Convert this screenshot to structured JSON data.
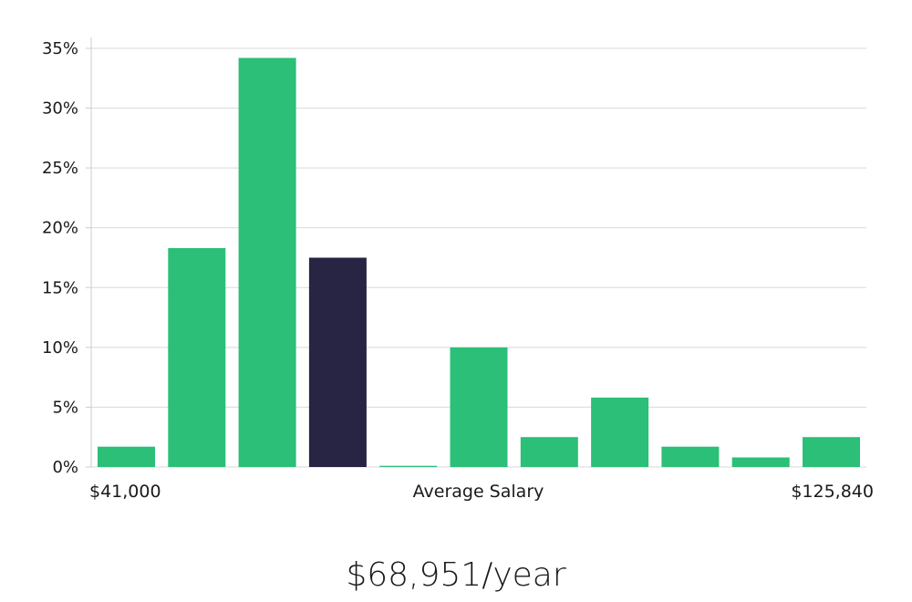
{
  "chart_data": {
    "type": "bar",
    "bins": 11,
    "values": [
      1.7,
      18.3,
      34.2,
      17.5,
      0.1,
      10.0,
      2.5,
      5.8,
      1.7,
      0.8,
      2.5
    ],
    "highlight_index": 3,
    "ylim": [
      0,
      35
    ],
    "yticks": [
      0,
      5,
      10,
      15,
      20,
      25,
      30,
      35
    ],
    "y_tick_suffix": "%",
    "grid": true,
    "x_min_label": "$41,000",
    "x_center_label": "Average Salary",
    "x_max_label": "$125,840",
    "colors": {
      "bar": "#2bbf78",
      "highlight": "#272444",
      "grid": "#d9d9d9",
      "axis": "#cccccc"
    }
  },
  "average_salary": "$68,951/year"
}
